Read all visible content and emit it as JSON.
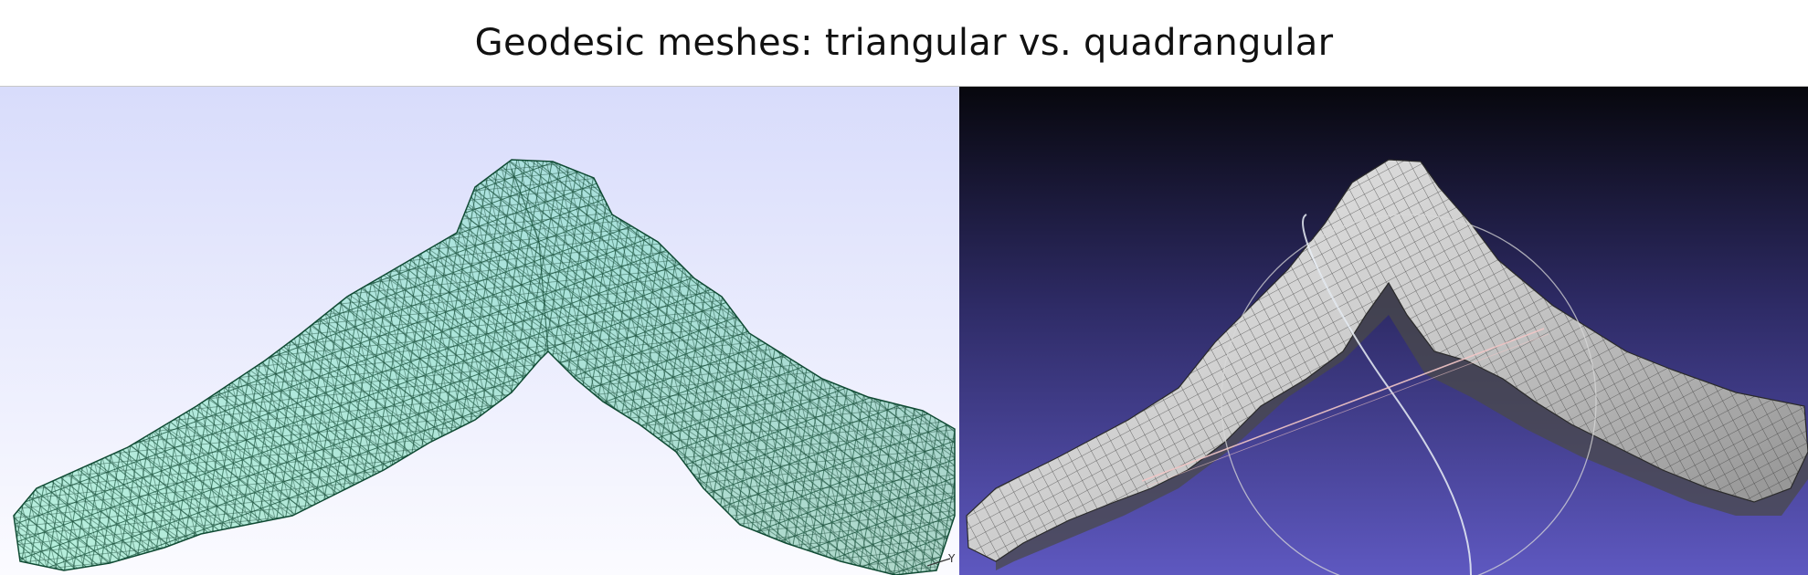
{
  "title": "Geodesic meshes: triangular vs. quadrangular",
  "left_panel": {
    "axis_label": "Y",
    "background_top": "#d8dcfb",
    "background_bottom": "#fbfbff",
    "mesh_fill": "#2fe39e",
    "mesh_line": "#0f4a33"
  },
  "right_panel": {
    "background_top": "#07070d",
    "background_bottom": "#5e58c0",
    "surface_fill": "#cfcfcf",
    "grid_line": "#3a3a3a",
    "trackball_color": "#d8d8d8",
    "axis_line_color": "#f2c6c6"
  }
}
